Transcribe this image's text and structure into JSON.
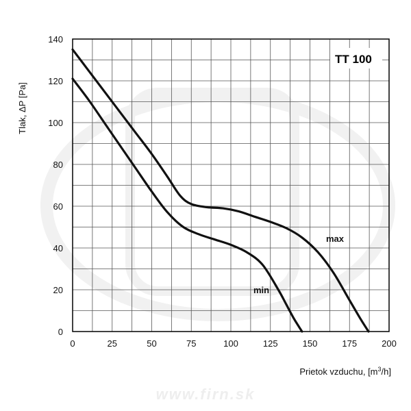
{
  "chart_data": {
    "type": "line",
    "title": "TT 100",
    "xlabel": "Prietok vzduchu, [m³/h]",
    "ylabel": "Tlak,  ΔP [Pa]",
    "xlim": [
      0,
      200
    ],
    "ylim": [
      0,
      140
    ],
    "xticks": [
      0,
      25,
      50,
      75,
      100,
      125,
      150,
      175,
      200
    ],
    "yticks": [
      0,
      20,
      40,
      60,
      80,
      100,
      120,
      140
    ],
    "grid": true,
    "series": [
      {
        "name": "max",
        "x": [
          0,
          10,
          20,
          30,
          40,
          50,
          60,
          68,
          75,
          85,
          95,
          105,
          115,
          125,
          135,
          145,
          155,
          165,
          175,
          182,
          187
        ],
        "y": [
          135,
          125,
          115,
          105,
          95,
          85,
          74,
          65,
          61,
          59.5,
          59,
          57.5,
          55,
          52.5,
          49.5,
          45,
          38,
          28,
          15,
          6,
          0
        ]
      },
      {
        "name": "min",
        "x": [
          0,
          10,
          20,
          30,
          40,
          50,
          60,
          70,
          80,
          90,
          100,
          110,
          120,
          130,
          135,
          140,
          145
        ],
        "y": [
          121,
          111,
          100,
          89,
          78,
          67,
          57,
          50,
          46.5,
          44,
          41.5,
          38,
          32,
          20,
          13,
          6,
          0
        ]
      }
    ]
  },
  "watermark": "www.firn.sk",
  "colors": {
    "curve": "#111111",
    "grid": "#555555",
    "frame": "#000000"
  }
}
